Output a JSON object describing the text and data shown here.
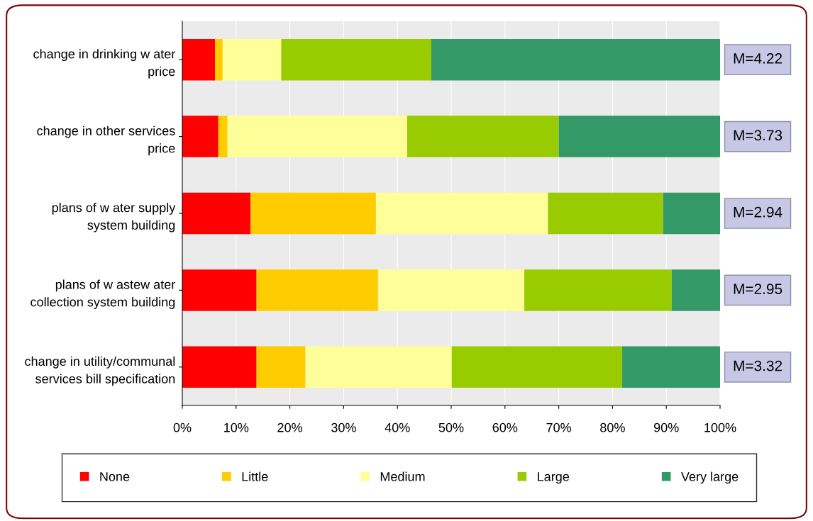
{
  "chart_data": {
    "type": "bar",
    "orientation": "horizontal",
    "stacked": true,
    "categories": [
      "change in drinking w ater\nprice",
      "change in other services\nprice",
      "plans of w ater supply\nsystem building",
      "plans of w astew ater\ncollection system building",
      "change in utility/communal\nservices bill specification"
    ],
    "series": [
      {
        "name": "None",
        "color": "#ff0000",
        "values": [
          6.1,
          6.7,
          12.7,
          13.8,
          13.8
        ]
      },
      {
        "name": "Little",
        "color": "#ffcc00",
        "values": [
          1.4,
          1.7,
          23.3,
          22.6,
          9.1
        ]
      },
      {
        "name": "Medium",
        "color": "#ffff99",
        "values": [
          10.9,
          33.4,
          32.0,
          27.2,
          27.2
        ]
      },
      {
        "name": "Large",
        "color": "#99cc00",
        "values": [
          27.9,
          28.2,
          21.4,
          27.4,
          31.7
        ]
      },
      {
        "name": "Very large",
        "color": "#339966",
        "values": [
          53.7,
          30.0,
          10.6,
          9.0,
          18.2
        ]
      }
    ],
    "xlim": [
      0,
      100
    ],
    "xticks": [
      {
        "value": 0,
        "label": "0%"
      },
      {
        "value": 10,
        "label": "10%"
      },
      {
        "value": 20,
        "label": "20%"
      },
      {
        "value": 30,
        "label": "30%"
      },
      {
        "value": 40,
        "label": "40%"
      },
      {
        "value": 50,
        "label": "50%"
      },
      {
        "value": 60,
        "label": "60%"
      },
      {
        "value": 70,
        "label": "70%"
      },
      {
        "value": 80,
        "label": "80%"
      },
      {
        "value": 90,
        "label": "90%"
      },
      {
        "value": 100,
        "label": "100%"
      }
    ],
    "annotations": [
      "M=4.22",
      "M=3.73",
      "M=2.94",
      "M=2.95",
      "M=3.32"
    ],
    "grid": "x",
    "legend": "bottom"
  }
}
